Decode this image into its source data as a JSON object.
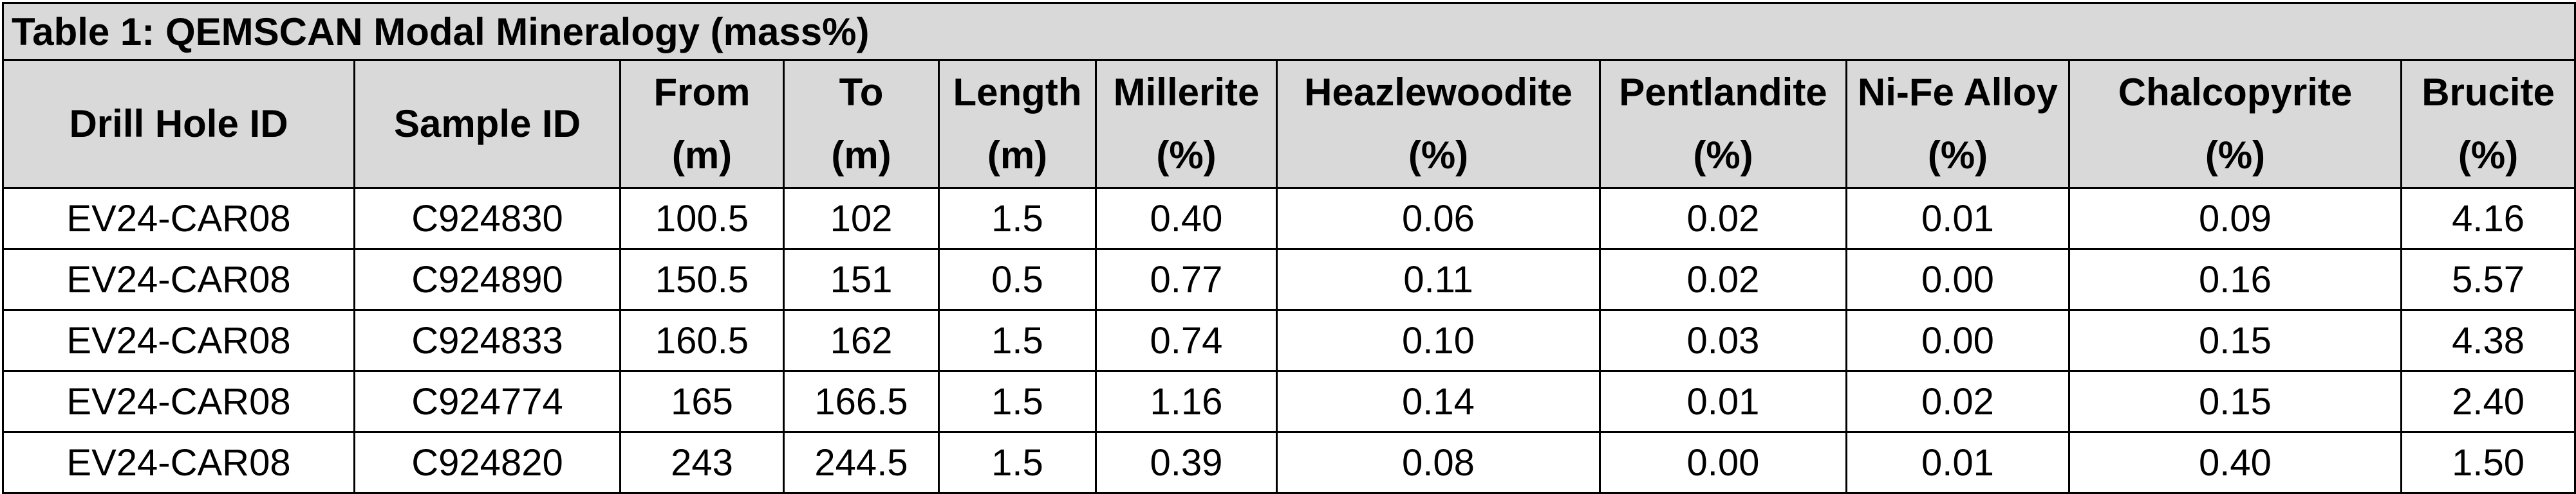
{
  "table": {
    "title": "Table 1: QEMSCAN Modal Mineralogy (mass%)",
    "columns": [
      {
        "id": "drill-hole-id",
        "lines": [
          "Drill Hole ID"
        ]
      },
      {
        "id": "sample-id",
        "lines": [
          "Sample ID"
        ]
      },
      {
        "id": "from",
        "lines": [
          "From",
          "(m)"
        ]
      },
      {
        "id": "to",
        "lines": [
          "To",
          "(m)"
        ]
      },
      {
        "id": "length",
        "lines": [
          "Length",
          "(m)"
        ]
      },
      {
        "id": "millerite",
        "lines": [
          "Millerite",
          "(%)"
        ]
      },
      {
        "id": "heazlewoodite",
        "lines": [
          "Heazlewoodite",
          "(%)"
        ]
      },
      {
        "id": "pentlandite",
        "lines": [
          "Pentlandite",
          "(%)"
        ]
      },
      {
        "id": "ni-fe-alloy",
        "lines": [
          "Ni-Fe Alloy",
          "(%)"
        ]
      },
      {
        "id": "chalcopyrite",
        "lines": [
          "Chalcopyrite",
          "(%)"
        ]
      },
      {
        "id": "brucite",
        "lines": [
          "Brucite",
          "(%)"
        ]
      }
    ],
    "rows": [
      [
        "EV24-CAR08",
        "C924830",
        "100.5",
        "102",
        "1.5",
        "0.40",
        "0.06",
        "0.02",
        "0.01",
        "0.09",
        "4.16"
      ],
      [
        "EV24-CAR08",
        "C924890",
        "150.5",
        "151",
        "0.5",
        "0.77",
        "0.11",
        "0.02",
        "0.00",
        "0.16",
        "5.57"
      ],
      [
        "EV24-CAR08",
        "C924833",
        "160.5",
        "162",
        "1.5",
        "0.74",
        "0.10",
        "0.03",
        "0.00",
        "0.15",
        "4.38"
      ],
      [
        "EV24-CAR08",
        "C924774",
        "165",
        "166.5",
        "1.5",
        "1.16",
        "0.14",
        "0.01",
        "0.02",
        "0.15",
        "2.40"
      ],
      [
        "EV24-CAR08",
        "C924820",
        "243",
        "244.5",
        "1.5",
        "0.39",
        "0.08",
        "0.00",
        "0.01",
        "0.40",
        "1.50"
      ]
    ]
  }
}
